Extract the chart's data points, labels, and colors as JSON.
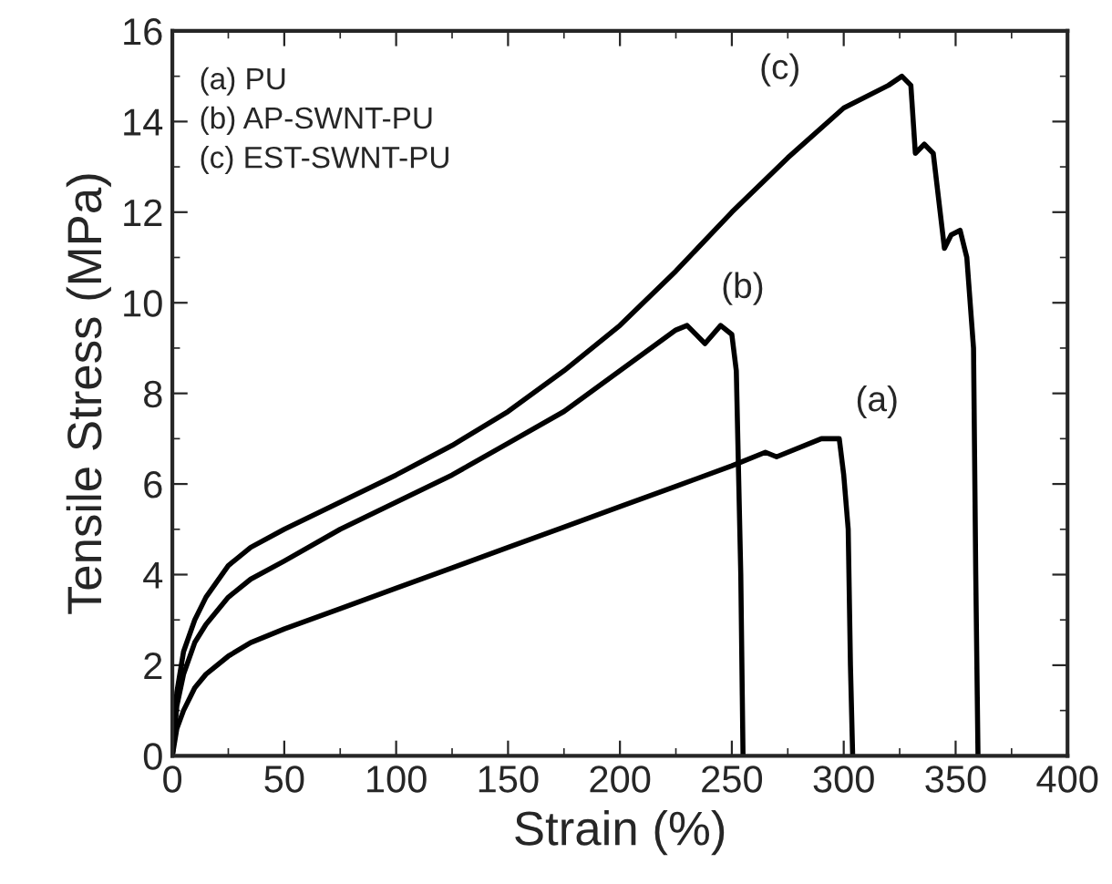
{
  "chart_data": {
    "type": "line",
    "xlabel": "Strain (%)",
    "ylabel": "Tensile Stress (MPa)",
    "xlim": [
      0,
      400
    ],
    "ylim": [
      0,
      16
    ],
    "xticks": [
      0,
      50,
      100,
      150,
      200,
      250,
      300,
      350,
      400
    ],
    "yticks": [
      0,
      2,
      4,
      6,
      8,
      10,
      12,
      14,
      16
    ],
    "grid": false,
    "legend": false,
    "marker": "none",
    "line_style": "solid",
    "series": [
      {
        "name": "(a)",
        "color": "#000000",
        "x": [
          0,
          2,
          5,
          10,
          15,
          25,
          35,
          50,
          75,
          100,
          125,
          150,
          175,
          200,
          225,
          250,
          265,
          270,
          290,
          298,
          300,
          302,
          303,
          304
        ],
        "values": [
          0,
          0.6,
          1.0,
          1.5,
          1.8,
          2.2,
          2.5,
          2.8,
          3.25,
          3.7,
          4.15,
          4.6,
          5.05,
          5.5,
          5.95,
          6.4,
          6.7,
          6.6,
          7.0,
          7.0,
          6.2,
          5.0,
          2.0,
          0
        ]
      },
      {
        "name": "(b)",
        "color": "#000000",
        "x": [
          0,
          2,
          5,
          10,
          15,
          25,
          35,
          50,
          75,
          100,
          125,
          150,
          175,
          200,
          225,
          230,
          238,
          245,
          250,
          252,
          254,
          255
        ],
        "values": [
          0,
          1.1,
          1.8,
          2.5,
          2.9,
          3.5,
          3.9,
          4.3,
          5.0,
          5.6,
          6.2,
          6.9,
          7.6,
          8.5,
          9.4,
          9.5,
          9.1,
          9.5,
          9.3,
          8.5,
          4.0,
          0
        ]
      },
      {
        "name": "(c)",
        "color": "#000000",
        "x": [
          0,
          2,
          5,
          10,
          15,
          25,
          35,
          50,
          75,
          100,
          125,
          150,
          175,
          200,
          225,
          250,
          275,
          300,
          320,
          326,
          330,
          332,
          336,
          340,
          345,
          348,
          352,
          355,
          358,
          359,
          360
        ],
        "values": [
          0,
          1.4,
          2.3,
          3.0,
          3.5,
          4.2,
          4.6,
          5.0,
          5.6,
          6.2,
          6.85,
          7.6,
          8.5,
          9.5,
          10.7,
          12.0,
          13.2,
          14.3,
          14.8,
          15.0,
          14.8,
          13.3,
          13.5,
          13.3,
          11.2,
          11.5,
          11.6,
          11.0,
          9.0,
          4.0,
          0
        ]
      }
    ],
    "annotations": [
      "(a) PU\n(b) AP-SWNT-PU\n(c) EST-SWNT-PU"
    ]
  }
}
